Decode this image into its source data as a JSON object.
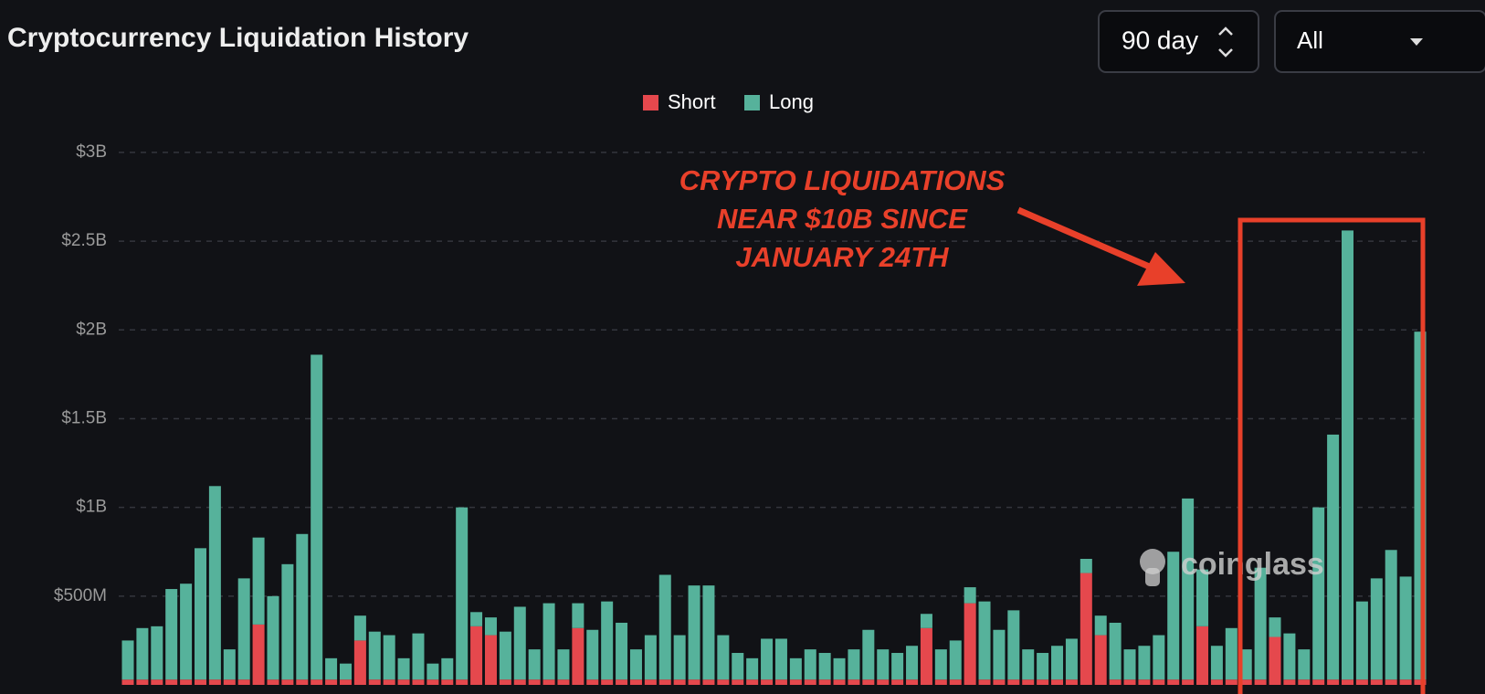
{
  "chart_data": {
    "type": "bar",
    "stacked": true,
    "title": "Cryptocurrency Liquidation History",
    "series": [
      {
        "name": "Short",
        "color": "#e5484d",
        "values": [
          30000000,
          30000000,
          30000000,
          30000000,
          30000000,
          30000000,
          30000000,
          30000000,
          30000000,
          340000000,
          30000000,
          30000000,
          30000000,
          30000000,
          30000000,
          30000000,
          250000000,
          30000000,
          30000000,
          30000000,
          30000000,
          30000000,
          30000000,
          30000000,
          330000000,
          280000000,
          30000000,
          30000000,
          30000000,
          30000000,
          30000000,
          320000000,
          30000000,
          30000000,
          30000000,
          30000000,
          30000000,
          30000000,
          30000000,
          30000000,
          30000000,
          30000000,
          30000000,
          30000000,
          30000000,
          30000000,
          30000000,
          30000000,
          30000000,
          30000000,
          30000000,
          30000000,
          30000000,
          30000000,
          30000000,
          320000000,
          30000000,
          30000000,
          460000000,
          30000000,
          30000000,
          30000000,
          30000000,
          30000000,
          30000000,
          30000000,
          630000000,
          280000000,
          30000000,
          30000000,
          30000000,
          30000000,
          30000000,
          30000000,
          330000000,
          30000000,
          30000000,
          30000000,
          30000000,
          270000000,
          30000000,
          30000000,
          30000000,
          30000000,
          30000000,
          30000000,
          30000000,
          30000000,
          30000000,
          30000000
        ]
      },
      {
        "name": "Long",
        "color": "#56b29b",
        "values": [
          220000000,
          290000000,
          300000000,
          510000000,
          540000000,
          740000000,
          1090000000,
          170000000,
          570000000,
          490000000,
          470000000,
          650000000,
          820000000,
          1830000000,
          120000000,
          90000000,
          140000000,
          270000000,
          250000000,
          120000000,
          260000000,
          90000000,
          120000000,
          970000000,
          80000000,
          100000000,
          270000000,
          410000000,
          170000000,
          430000000,
          170000000,
          140000000,
          280000000,
          440000000,
          320000000,
          170000000,
          250000000,
          590000000,
          250000000,
          530000000,
          530000000,
          250000000,
          150000000,
          120000000,
          230000000,
          230000000,
          120000000,
          170000000,
          150000000,
          120000000,
          170000000,
          280000000,
          170000000,
          150000000,
          190000000,
          80000000,
          170000000,
          220000000,
          90000000,
          440000000,
          280000000,
          390000000,
          170000000,
          150000000,
          190000000,
          230000000,
          80000000,
          110000000,
          320000000,
          170000000,
          190000000,
          250000000,
          720000000,
          1020000000,
          320000000,
          190000000,
          290000000,
          170000000,
          630000000,
          110000000,
          260000000,
          170000000,
          970000000,
          1380000000,
          2530000000,
          440000000,
          570000000,
          730000000,
          580000000,
          1960000000
        ]
      }
    ],
    "ylim": [
      0,
      3200000000
    ],
    "yticks": [
      {
        "value": 500000000,
        "label": "$500M"
      },
      {
        "value": 1000000000,
        "label": "$1B"
      },
      {
        "value": 1500000000,
        "label": "$1.5B"
      },
      {
        "value": 2000000000,
        "label": "$2B"
      },
      {
        "value": 2500000000,
        "label": "$2.5B"
      },
      {
        "value": 3000000000,
        "label": "$3B"
      }
    ],
    "grid": true,
    "annotation": [
      "CRYPTO LIQUIDATIONS",
      "NEAR $10B SINCE",
      "JANUARY 24TH"
    ]
  },
  "controls": {
    "period": "90 day",
    "filter": "All"
  },
  "watermark": "coinglass"
}
